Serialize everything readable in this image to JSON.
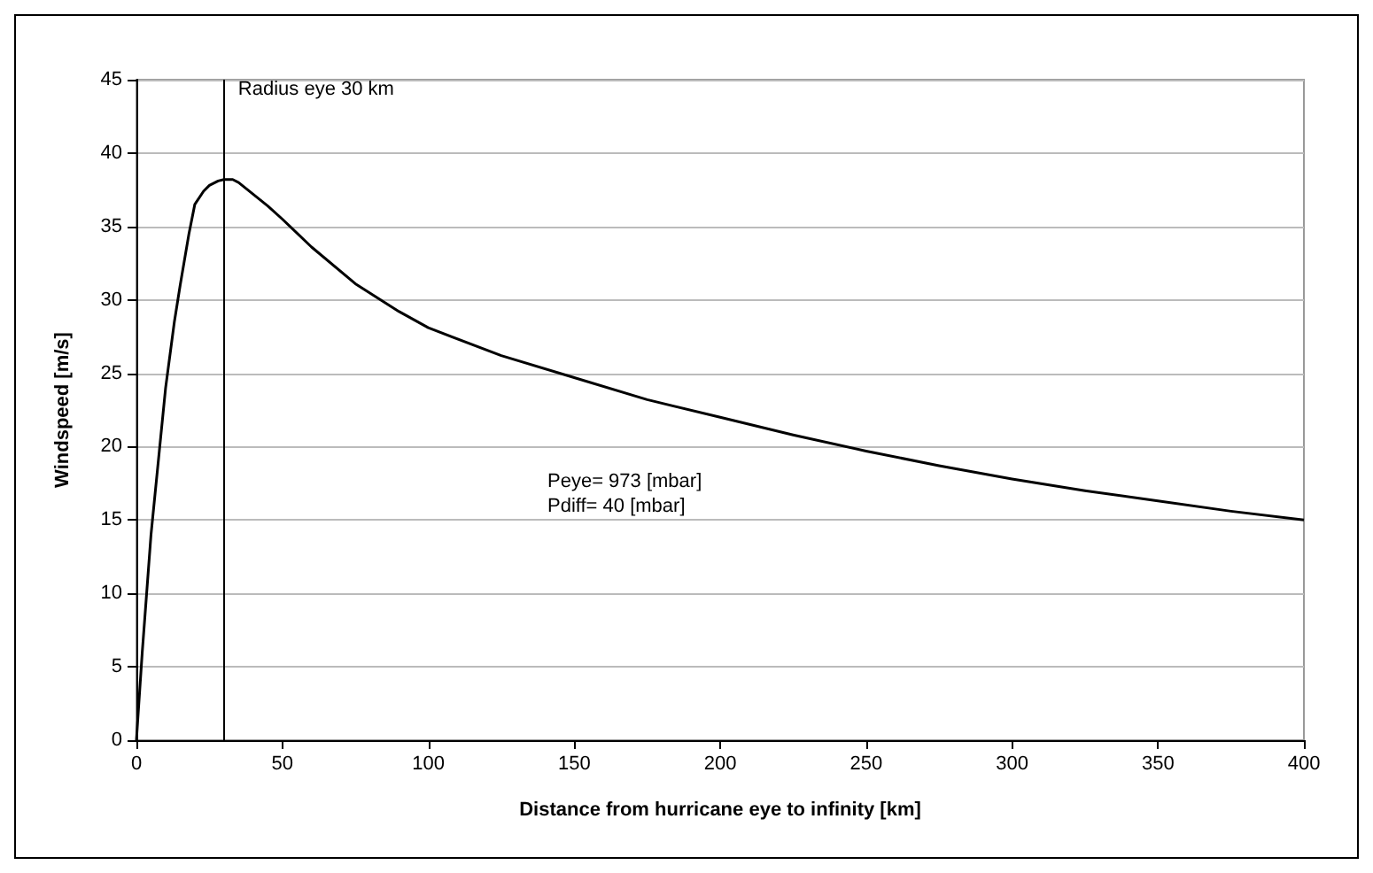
{
  "chart_data": {
    "type": "line",
    "xlabel": "Distance from hurricane eye to infinity [km]",
    "ylabel": "Windspeed [m/s]",
    "x": [
      0,
      2,
      5,
      8,
      10,
      13,
      15,
      18,
      20,
      23,
      25,
      28,
      30,
      33,
      35,
      40,
      45,
      50,
      60,
      75,
      90,
      100,
      125,
      150,
      175,
      200,
      225,
      250,
      275,
      300,
      325,
      350,
      375,
      400
    ],
    "series": [
      {
        "color": "#000000",
        "values": [
          0,
          6,
          14,
          20,
          24,
          28.5,
          31,
          34.5,
          36.5,
          37.4,
          37.8,
          38.1,
          38.2,
          38.2,
          38,
          37.2,
          36.4,
          35.5,
          33.6,
          31.1,
          29.2,
          28.1,
          26.2,
          24.7,
          23.2,
          22,
          20.8,
          19.7,
          18.7,
          17.8,
          17,
          16.3,
          15.6,
          15
        ]
      }
    ],
    "xlim": [
      0,
      400
    ],
    "xticks": [
      0,
      50,
      100,
      150,
      200,
      250,
      300,
      350,
      400
    ],
    "ylim": [
      0,
      45
    ],
    "yticks": [
      0,
      5,
      10,
      15,
      20,
      25,
      30,
      35,
      40,
      45
    ],
    "grid": "y",
    "marker": "none",
    "line_style": "solid",
    "ref_lines": [
      {
        "axis": "x",
        "value": 30,
        "label": "Radius eye 30 km",
        "color": "#000000"
      }
    ],
    "annotations": [
      "Peye= 973 [mbar]\nPdiff= 40 [mbar]"
    ]
  }
}
